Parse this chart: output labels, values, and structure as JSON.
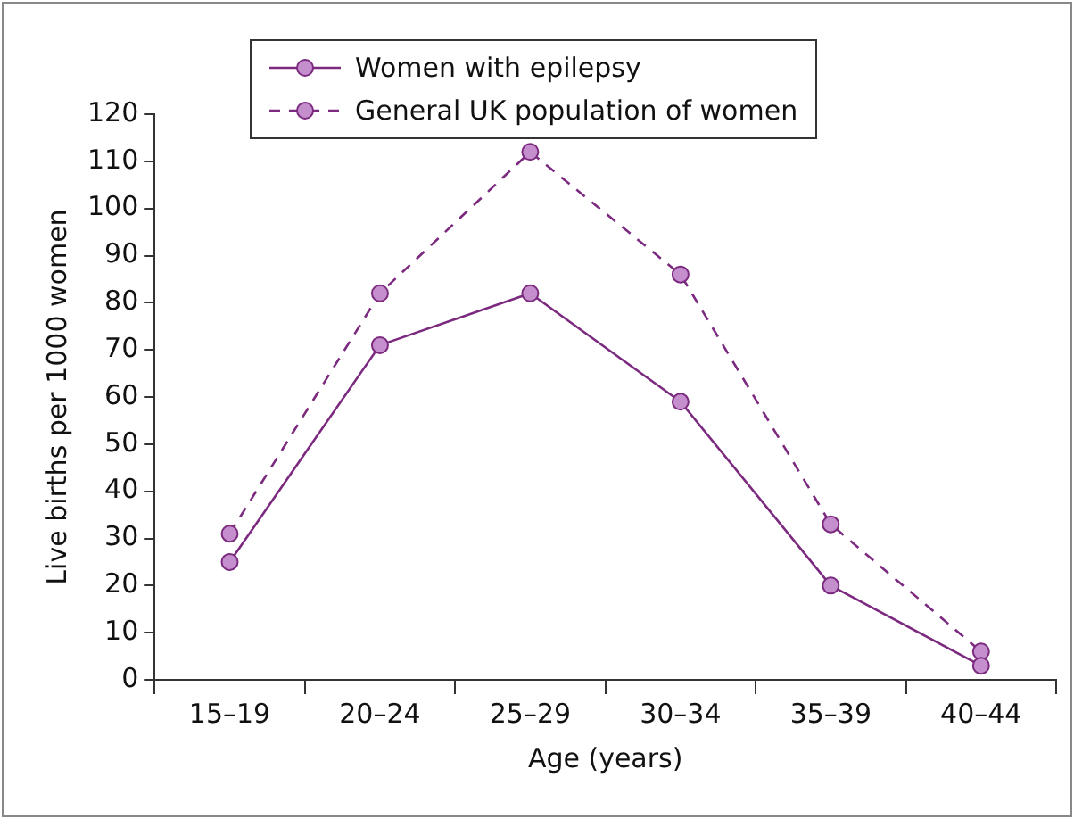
{
  "chart_data": {
    "type": "line",
    "xlabel": "Age (years)",
    "ylabel": "Live births per 1000 women",
    "categories": [
      "15–19",
      "20–24",
      "25–29",
      "30–34",
      "35–39",
      "40–44"
    ],
    "series": [
      {
        "name": "Women with epilepsy",
        "color": "#7b2a7f",
        "values": [
          25,
          71,
          82,
          59,
          20,
          3
        ],
        "line_style": "solid"
      },
      {
        "name": "General UK population of women",
        "color": "#7b2a7f",
        "values": [
          31,
          82,
          112,
          86,
          33,
          6
        ],
        "line_style": "dashed"
      }
    ],
    "ylim": [
      0,
      120
    ],
    "yticks": [
      0,
      10,
      20,
      30,
      40,
      50,
      60,
      70,
      80,
      90,
      100,
      110,
      120
    ],
    "grid": false,
    "legend": "top",
    "marker": "circle"
  }
}
